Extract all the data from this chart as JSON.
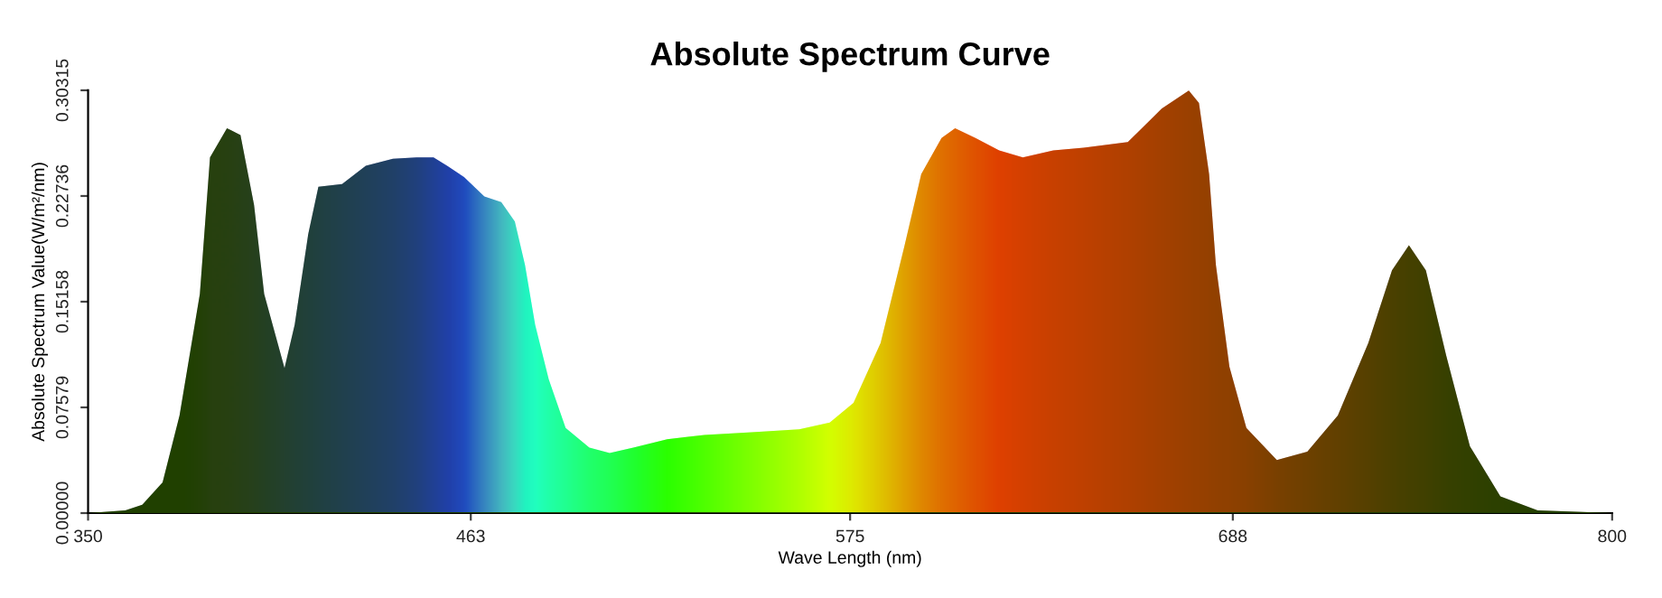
{
  "chart_data": {
    "type": "area",
    "title": "Absolute Spectrum Curve",
    "xlabel": "Wave Length (nm)",
    "ylabel": "Absolute Spectrum Value(W/m²/nm)",
    "xlim": [
      350,
      800
    ],
    "xticks": [
      350,
      463,
      575,
      688,
      800
    ],
    "ylim": [
      0,
      0.30315
    ],
    "yticks": [
      {
        "value": 0,
        "label": "0.00000"
      },
      0.07579,
      0.15158,
      0.22736,
      0.30315
    ],
    "grid": false,
    "legend": false,
    "series": [
      {
        "x": [
          350,
          361,
          366,
          372,
          377,
          383,
          386,
          391,
          395,
          399,
          402,
          408,
          411,
          415,
          418,
          425,
          432,
          440,
          447,
          452,
          456,
          461,
          467,
          472,
          476,
          479,
          482,
          486,
          491,
          498,
          504,
          511,
          521,
          532,
          546,
          560,
          569,
          576,
          584,
          591,
          596,
          602,
          606,
          612,
          619,
          626,
          635,
          644,
          657,
          667,
          675,
          678,
          681,
          683,
          687,
          692,
          701,
          710,
          719,
          728,
          735,
          740,
          745,
          751,
          758,
          767,
          778,
          800
        ],
        "values": [
          0,
          0.002,
          0.006,
          0.022,
          0.07,
          0.157,
          0.255,
          0.276,
          0.271,
          0.221,
          0.157,
          0.104,
          0.135,
          0.2,
          0.234,
          0.236,
          0.249,
          0.254,
          0.255,
          0.255,
          0.249,
          0.241,
          0.227,
          0.223,
          0.209,
          0.178,
          0.135,
          0.096,
          0.061,
          0.047,
          0.043,
          0.047,
          0.053,
          0.056,
          0.058,
          0.06,
          0.065,
          0.079,
          0.122,
          0.191,
          0.243,
          0.269,
          0.276,
          0.269,
          0.26,
          0.255,
          0.26,
          0.262,
          0.266,
          0.29,
          0.303,
          0.294,
          0.243,
          0.178,
          0.105,
          0.061,
          0.038,
          0.044,
          0.07,
          0.122,
          0.174,
          0.192,
          0.174,
          0.113,
          0.048,
          0.012,
          0.002,
          0
        ],
        "colors": [
          "#000000",
          "#000000",
          "#000000",
          "#000000",
          "#000000",
          "#05000a",
          "#0a0014",
          "#0a0018",
          "#0a0020",
          "#080028",
          "#060030",
          "#040040",
          "#030048",
          "#020050",
          "#010058",
          "#000068",
          "#000078",
          "#00008c",
          "#0000a8",
          "#0000c8",
          "#0000e0",
          "#0010ff",
          "#2060ff",
          "#30a0ff",
          "#20d0ff",
          "#00f0ff",
          "#00ffff",
          "#00ffe0",
          "#00ffc0",
          "#00ff90",
          "#00ff70",
          "#00ff40",
          "#10ff00",
          "#40ff00",
          "#80ff00",
          "#c0ff00",
          "#f0ff00",
          "#ffe000",
          "#ffb000",
          "#ff8000",
          "#ff6000",
          "#ff4000",
          "#ff3000",
          "#ff1800",
          "#ff0000",
          "#f00000",
          "#e00000",
          "#d40000",
          "#c00000",
          "#b00000",
          "#a40000",
          "#a00000",
          "#9c0000",
          "#980000",
          "#940000",
          "#8c0000",
          "#780000",
          "#680000",
          "#580000",
          "#480000",
          "#3a0000",
          "#320000",
          "#2c0000",
          "#200000",
          "#180000",
          "#100000",
          "#080000",
          "#000000"
        ]
      }
    ]
  }
}
